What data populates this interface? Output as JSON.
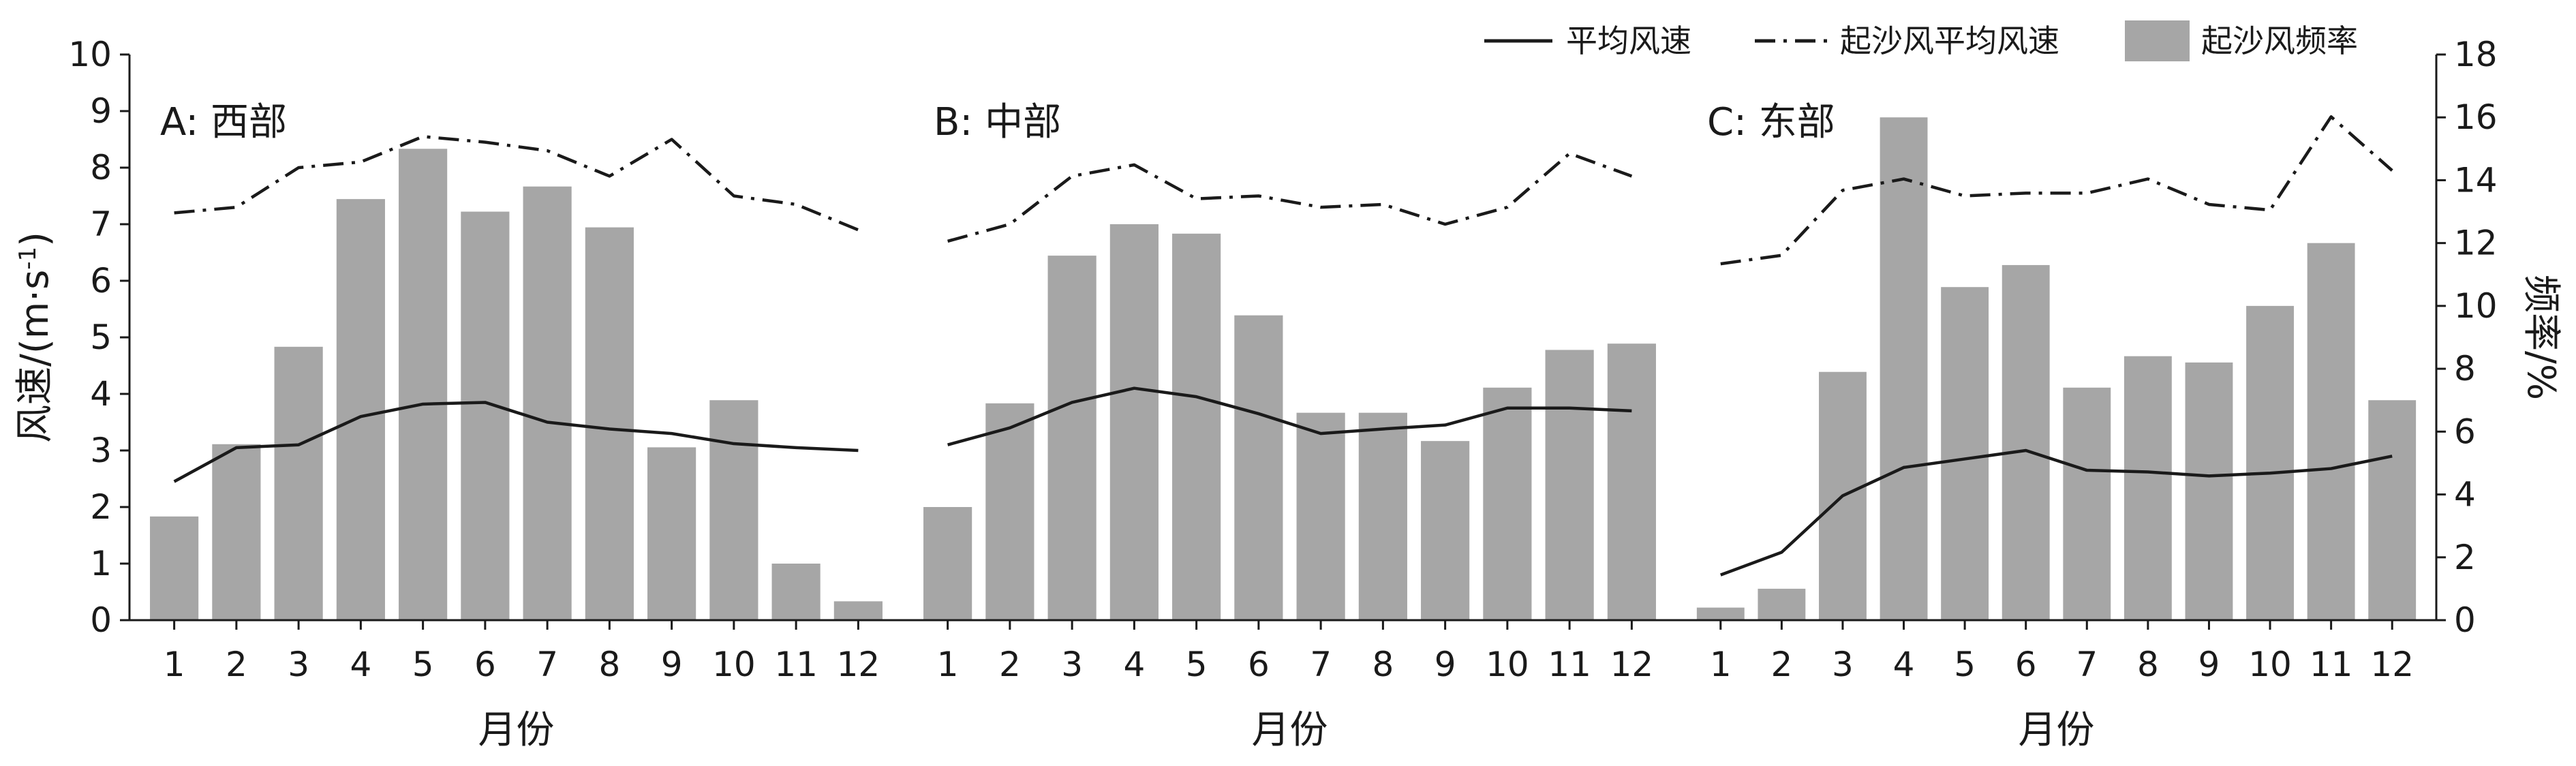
{
  "chart_data": {
    "type": "bar",
    "legend": {
      "position": "top-right",
      "items": [
        {
          "label": "平均风速",
          "kind": "solid-line"
        },
        {
          "label": "起沙风平均风速",
          "kind": "dash-dot-line"
        },
        {
          "label": "起沙风频率",
          "kind": "bar"
        }
      ]
    },
    "left_axis": {
      "label": "风速/(m·s-1)",
      "label_main": "风速/(m·s",
      "label_sup": "-1",
      "label_end": ")",
      "ylim": [
        0,
        10
      ],
      "ticks": [
        "0",
        "1",
        "2",
        "3",
        "4",
        "5",
        "6",
        "7",
        "8",
        "9",
        "10"
      ]
    },
    "right_axis": {
      "label": "频率/%",
      "ylim": [
        0,
        18
      ],
      "ticks": [
        "0",
        "2",
        "4",
        "6",
        "8",
        "10",
        "12",
        "14",
        "16",
        "18"
      ]
    },
    "xlabel": "月份",
    "categories": [
      "1",
      "2",
      "3",
      "4",
      "5",
      "6",
      "7",
      "8",
      "9",
      "10",
      "11",
      "12"
    ],
    "colors": {
      "bar": "#a6a6a6",
      "line": "#1a1a1a",
      "axis": "#1a1a1a"
    },
    "grid": false,
    "panels": [
      {
        "label": "A: 西部",
        "series": [
          {
            "name": "起沙风频率",
            "type": "bar",
            "axis": "right",
            "values": [
              3.3,
              5.6,
              8.7,
              13.4,
              15.0,
              13.0,
              13.8,
              12.5,
              5.5,
              7.0,
              1.8,
              0.6
            ]
          },
          {
            "name": "平均风速",
            "type": "line",
            "axis": "left",
            "values": [
              2.45,
              3.05,
              3.1,
              3.6,
              3.82,
              3.85,
              3.5,
              3.38,
              3.3,
              3.12,
              3.05,
              3.0
            ]
          },
          {
            "name": "起沙风平均风速",
            "type": "line",
            "axis": "left",
            "values": [
              7.2,
              7.3,
              8.0,
              8.1,
              8.55,
              8.45,
              8.3,
              7.85,
              8.5,
              7.5,
              7.35,
              6.9
            ]
          }
        ]
      },
      {
        "label": "B: 中部",
        "series": [
          {
            "name": "起沙风频率",
            "type": "bar",
            "axis": "right",
            "values": [
              3.6,
              6.9,
              11.6,
              12.6,
              12.3,
              9.7,
              6.6,
              6.6,
              5.7,
              7.4,
              8.6,
              8.8
            ]
          },
          {
            "name": "平均风速",
            "type": "line",
            "axis": "left",
            "values": [
              3.1,
              3.4,
              3.85,
              4.1,
              3.95,
              3.65,
              3.3,
              3.38,
              3.45,
              3.75,
              3.75,
              3.7
            ]
          },
          {
            "name": "起沙风平均风速",
            "type": "line",
            "axis": "left",
            "values": [
              6.7,
              7.0,
              7.85,
              8.05,
              7.45,
              7.5,
              7.3,
              7.35,
              7.0,
              7.3,
              8.25,
              7.85
            ]
          }
        ]
      },
      {
        "label": "C: 东部",
        "series": [
          {
            "name": "起沙风频率",
            "type": "bar",
            "axis": "right",
            "values": [
              0.4,
              1.0,
              7.9,
              16.0,
              10.6,
              11.3,
              7.4,
              8.4,
              8.2,
              10.0,
              12.0,
              7.0
            ]
          },
          {
            "name": "平均风速",
            "type": "line",
            "axis": "left",
            "values": [
              0.8,
              1.2,
              2.2,
              2.7,
              2.85,
              3.0,
              2.65,
              2.62,
              2.55,
              2.6,
              2.68,
              2.9
            ]
          },
          {
            "name": "起沙风平均风速",
            "type": "line",
            "axis": "left",
            "values": [
              6.3,
              6.45,
              7.6,
              7.8,
              7.5,
              7.55,
              7.55,
              7.8,
              7.35,
              7.25,
              8.9,
              7.95
            ]
          }
        ]
      }
    ]
  }
}
